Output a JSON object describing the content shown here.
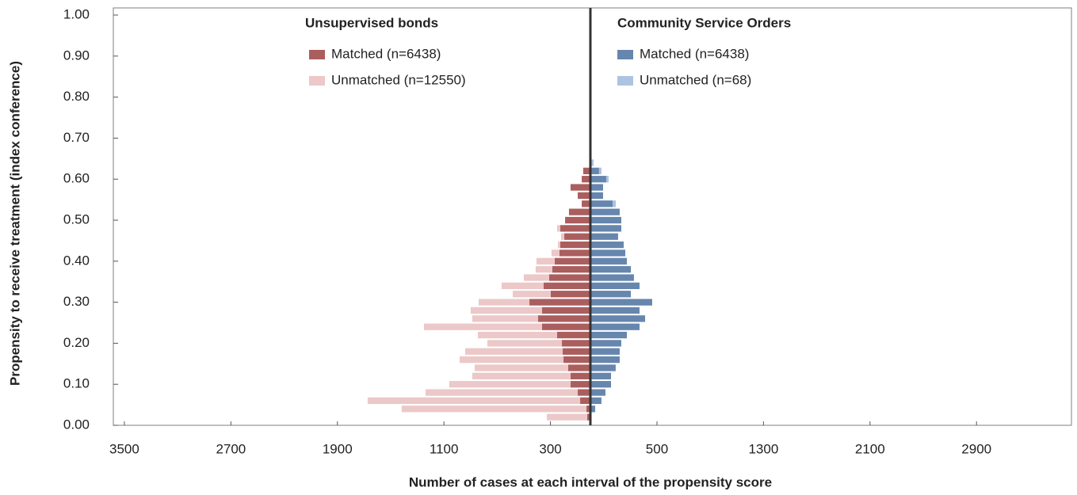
{
  "chart_data": {
    "type": "bar",
    "orientation": "horizontal",
    "x_label": "Number of cases at each interval of the propensity score",
    "y_label": "Propensity to receive treatment (index conference)",
    "y": [
      0.02,
      0.04,
      0.06,
      0.08,
      0.1,
      0.12,
      0.14,
      0.16,
      0.18,
      0.2,
      0.22,
      0.24,
      0.26,
      0.28,
      0.3,
      0.32,
      0.34,
      0.36,
      0.38,
      0.4,
      0.42,
      0.44,
      0.46,
      0.48,
      0.5,
      0.52,
      0.54,
      0.56,
      0.58,
      0.6,
      0.62,
      0.64
    ],
    "xlim": [
      -3583,
      3613
    ],
    "ylim": [
      0,
      1
    ],
    "xticks": [
      {
        "value": -3500,
        "label": "3500"
      },
      {
        "value": -2700,
        "label": "2700"
      },
      {
        "value": -1900,
        "label": "1900"
      },
      {
        "value": -1100,
        "label": "1100"
      },
      {
        "value": -300,
        "label": "300"
      },
      500,
      1300,
      2100,
      2900
    ],
    "yticks": [
      {
        "value": 0,
        "label": "0.00"
      },
      {
        "value": 0.1,
        "label": "0.10"
      },
      {
        "value": 0.2,
        "label": "0.20"
      },
      {
        "value": 0.3,
        "label": "0.30"
      },
      {
        "value": 0.4,
        "label": "0.40"
      },
      {
        "value": 0.5,
        "label": "0.50"
      },
      {
        "value": 0.6,
        "label": "0.60"
      },
      {
        "value": 0.7,
        "label": "0.70"
      },
      {
        "value": 0.8,
        "label": "0.80"
      },
      {
        "value": 0.9,
        "label": "0.90"
      },
      {
        "value": 1,
        "label": "1.00"
      }
    ],
    "sides": [
      {
        "title": "Unsupervised bonds",
        "series": [
          {
            "name": "Matched (n=6438)",
            "color": "#ab5e5e",
            "values": [
              -24,
              -30,
              -77,
              -95,
              -149,
              -149,
              -167,
              -202,
              -208,
              -214,
              -250,
              -363,
              -393,
              -363,
              -458,
              -298,
              -351,
              -310,
              -286,
              -268,
              -232,
              -226,
              -196,
              -226,
              -190,
              -161,
              -65,
              -95,
              -149,
              -65,
              -54,
              0
            ]
          },
          {
            "name": "Unmatched (n=12550)",
            "color": "#ecc8c8",
            "values": [
              -303,
              -1387,
              -1596,
              -1143,
              -911,
              -738,
              -702,
              -780,
              -732,
              -560,
              -595,
              -887,
              -494,
              -536,
              -381,
              -285,
              -316,
              -190,
              -125,
              -137,
              -60,
              -18,
              -24,
              -24,
              0,
              0,
              0,
              0,
              0,
              0,
              0,
              0
            ]
          }
        ]
      },
      {
        "title": "Community Service Orders",
        "series": [
          {
            "name": "Matched (n=6438)",
            "color": "#6686ae",
            "values": [
              0,
              36,
              83,
              113,
              155,
              155,
              190,
              220,
              220,
              232,
              274,
              369,
              411,
              369,
              464,
              304,
              369,
              327,
              304,
              274,
              262,
              250,
              208,
              232,
              232,
              220,
              167,
              95,
              95,
              119,
              65,
              0
            ]
          },
          {
            "name": "Unmatched (n=68)",
            "color": "#aec3e0",
            "values": [
              0,
              0,
              0,
              0,
              0,
              0,
              0,
              0,
              0,
              0,
              0,
              0,
              0,
              0,
              0,
              0,
              0,
              0,
              0,
              0,
              0,
              0,
              0,
              0,
              0,
              0,
              24,
              0,
              0,
              18,
              18,
              24
            ]
          }
        ]
      }
    ]
  }
}
